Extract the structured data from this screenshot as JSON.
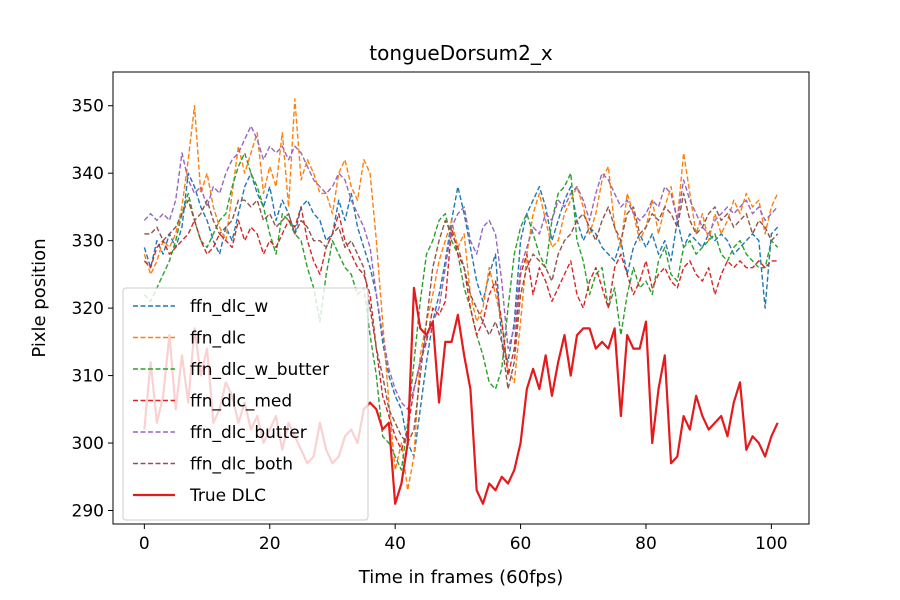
{
  "chart_data": {
    "type": "line",
    "title": "tongueDorsum2_x",
    "xlabel": "Time in frames (60fps)",
    "ylabel": "Pixle position",
    "xlim": [
      -5,
      106
    ],
    "ylim": [
      288,
      355
    ],
    "xticks": [
      0,
      20,
      40,
      60,
      80,
      100
    ],
    "yticks": [
      290,
      300,
      310,
      320,
      330,
      340,
      350
    ],
    "grid": false,
    "legend_position": "lower-left",
    "series": [
      {
        "name": "ffn_dlc_w",
        "color": "#1f77b4",
        "style": "dashed",
        "values": [
          329,
          326,
          330,
          328,
          331,
          329,
          332,
          340,
          338,
          335,
          333,
          330,
          328,
          332,
          330,
          334,
          338,
          340,
          337,
          335,
          338,
          333,
          336,
          334,
          331,
          335,
          336,
          334,
          333,
          330,
          331,
          336,
          333,
          337,
          332,
          329,
          326,
          322,
          315,
          310,
          307,
          305,
          300,
          298,
          305,
          312,
          318,
          322,
          327,
          333,
          338,
          334,
          329,
          324,
          321,
          325,
          328,
          315,
          312,
          318,
          330,
          334,
          336,
          338,
          335,
          330,
          333,
          336,
          338,
          333,
          330,
          332,
          331,
          329,
          328,
          327,
          330,
          325,
          329,
          331,
          329,
          331,
          328,
          330,
          327,
          333,
          329,
          331,
          330,
          329,
          331,
          330,
          331,
          330,
          328,
          329,
          330,
          331,
          330,
          320,
          331,
          332
        ]
      },
      {
        "name": "ffn_dlc",
        "color": "#ff7f0e",
        "style": "dashed",
        "values": [
          328,
          325,
          327,
          330,
          329,
          331,
          335,
          342,
          350,
          337,
          340,
          335,
          332,
          330,
          337,
          344,
          340,
          343,
          346,
          337,
          341,
          338,
          346,
          335,
          351,
          339,
          342,
          340,
          337,
          337,
          334,
          340,
          342,
          338,
          336,
          342,
          340,
          330,
          318,
          306,
          296,
          300,
          293,
          298,
          313,
          318,
          322,
          327,
          330,
          333,
          329,
          331,
          322,
          318,
          320,
          326,
          322,
          318,
          311,
          309,
          318,
          328,
          334,
          337,
          333,
          329,
          330,
          334,
          336,
          338,
          335,
          331,
          334,
          339,
          341,
          332,
          329,
          337,
          334,
          330,
          332,
          336,
          331,
          335,
          338,
          333,
          343,
          337,
          331,
          334,
          330,
          334,
          331,
          333,
          336,
          334,
          337,
          335,
          336,
          331,
          335,
          337
        ]
      },
      {
        "name": "ffn_dlc_w_butter",
        "color": "#2ca02c",
        "style": "dashed",
        "values": [
          322,
          321,
          323,
          325,
          327,
          330,
          334,
          337,
          333,
          330,
          329,
          331,
          333,
          334,
          338,
          341,
          343,
          340,
          338,
          335,
          331,
          328,
          334,
          333,
          331,
          330,
          326,
          323,
          318,
          325,
          330,
          328,
          326,
          325,
          322,
          323,
          316,
          310,
          301,
          300,
          298,
          296,
          303,
          312,
          321,
          328,
          330,
          333,
          334,
          330,
          328,
          323,
          320,
          316,
          313,
          309,
          308,
          311,
          320,
          328,
          332,
          334,
          331,
          328,
          326,
          333,
          337,
          338,
          340,
          330,
          327,
          322,
          325,
          326,
          320,
          323,
          316,
          322,
          326,
          323,
          324,
          322,
          327,
          329,
          325,
          324,
          329,
          330,
          328,
          329,
          330,
          331,
          328,
          327,
          329,
          330,
          328,
          327,
          326,
          326,
          330,
          329
        ]
      },
      {
        "name": "ffn_dlc_med",
        "color": "#d62728",
        "style": "dashed",
        "values": [
          327,
          326,
          329,
          330,
          328,
          329,
          330,
          331,
          333,
          330,
          328,
          329,
          331,
          330,
          329,
          333,
          330,
          332,
          331,
          328,
          330,
          329,
          331,
          333,
          332,
          335,
          330,
          327,
          325,
          329,
          331,
          334,
          330,
          328,
          326,
          325,
          322,
          314,
          307,
          304,
          301,
          299,
          302,
          308,
          312,
          315,
          320,
          319,
          321,
          332,
          328,
          326,
          320,
          316,
          318,
          322,
          324,
          318,
          310,
          314,
          325,
          328,
          322,
          326,
          324,
          321,
          323,
          325,
          327,
          322,
          320,
          324,
          326,
          323,
          320,
          326,
          328,
          325,
          322,
          324,
          327,
          323,
          325,
          326,
          324,
          323,
          326,
          327,
          325,
          324,
          326,
          322,
          325,
          327,
          326,
          327,
          326,
          326,
          327,
          326,
          327,
          327
        ]
      },
      {
        "name": "ffn_dlc_butter",
        "color": "#9467bd",
        "style": "dashed",
        "values": [
          333,
          334,
          333,
          334,
          333,
          336,
          343,
          339,
          337,
          338,
          335,
          338,
          337,
          340,
          342,
          343,
          345,
          347,
          345,
          342,
          344,
          343,
          344,
          342,
          344,
          343,
          341,
          339,
          338,
          337,
          338,
          340,
          339,
          336,
          334,
          332,
          329,
          322,
          316,
          311,
          308,
          306,
          305,
          308,
          312,
          316,
          318,
          320,
          326,
          332,
          334,
          335,
          330,
          328,
          332,
          333,
          331,
          324,
          314,
          317,
          326,
          329,
          332,
          331,
          334,
          333,
          336,
          335,
          337,
          338,
          336,
          333,
          337,
          340,
          339,
          337,
          335,
          336,
          334,
          333,
          334,
          336,
          335,
          338,
          337,
          333,
          339,
          336,
          334,
          332,
          331,
          333,
          334,
          335,
          334,
          335,
          336,
          334,
          335,
          333,
          334,
          335
        ]
      },
      {
        "name": "ffn_dlc_both",
        "color": "#8c564b",
        "style": "dashed",
        "values": [
          331,
          331,
          332,
          330,
          331,
          332,
          334,
          336,
          333,
          334,
          336,
          333,
          331,
          332,
          333,
          336,
          336,
          335,
          336,
          333,
          334,
          332,
          333,
          334,
          331,
          333,
          332,
          330,
          330,
          329,
          331,
          332,
          329,
          330,
          328,
          326,
          320,
          314,
          310,
          305,
          303,
          301,
          300,
          302,
          310,
          318,
          326,
          330,
          333,
          331,
          329,
          326,
          322,
          320,
          318,
          316,
          318,
          315,
          308,
          312,
          322,
          326,
          328,
          327,
          326,
          324,
          328,
          330,
          331,
          333,
          334,
          332,
          330,
          333,
          335,
          332,
          330,
          334,
          335,
          331,
          332,
          334,
          333,
          335,
          334,
          332,
          337,
          333,
          331,
          332,
          334,
          335,
          333,
          334,
          332,
          333,
          334,
          331,
          333,
          332,
          330,
          331
        ]
      },
      {
        "name": "True DLC",
        "color": "#e41a1c",
        "style": "solid",
        "values": [
          302,
          312,
          303,
          307,
          316,
          305,
          313,
          306,
          317,
          310,
          314,
          303,
          305,
          309,
          307,
          303,
          306,
          302,
          304,
          300,
          302,
          304,
          299,
          303,
          301,
          299,
          297,
          298,
          303,
          299,
          297,
          298,
          301,
          302,
          300,
          305,
          306,
          305,
          302,
          303,
          291,
          294,
          300,
          323,
          317,
          316,
          318,
          306,
          315,
          315,
          319,
          313,
          308,
          293,
          291,
          294,
          293,
          295,
          294,
          296,
          300,
          308,
          311,
          308,
          313,
          307,
          312,
          316,
          310,
          316,
          317,
          317,
          314,
          315,
          314,
          317,
          304,
          316,
          314,
          314,
          318,
          300,
          308,
          313,
          297,
          298,
          304,
          302,
          307,
          304,
          302,
          303,
          304,
          301,
          306,
          309,
          299,
          301,
          300,
          298,
          301,
          303
        ]
      }
    ]
  }
}
